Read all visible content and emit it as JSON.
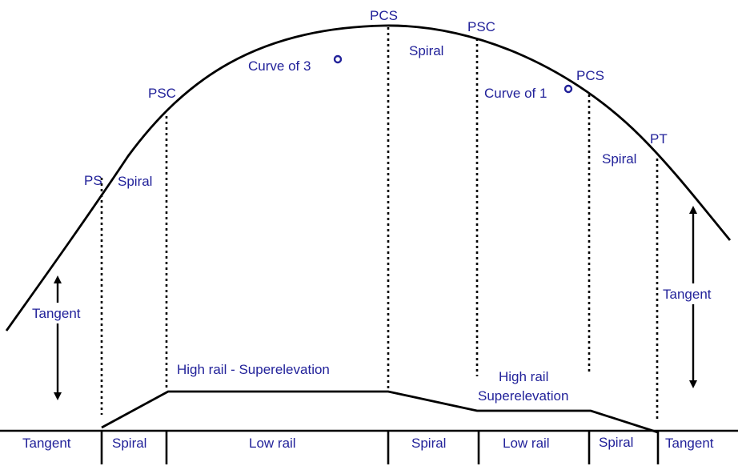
{
  "curve_labels": {
    "ps": "PS",
    "psc_left": "PSC",
    "pcs_top": "PCS",
    "psc_right": "PSC",
    "pcs_right": "PCS",
    "pt": "PT"
  },
  "segment_labels": {
    "spiral_left": "Spiral",
    "spiral_mid": "Spiral",
    "spiral_right": "Spiral",
    "curve_of_3": "Curve of 3",
    "curve_of_1": "Curve of 1"
  },
  "side_labels": {
    "tangent_left": "Tangent",
    "tangent_right": "Tangent"
  },
  "rail_labels": {
    "high_rail_left": "High rail - Superelevation",
    "high_rail_right_line1": "High rail",
    "high_rail_right_line2": "Superelevation"
  },
  "baseline_labels": {
    "tangent_left": "Tangent",
    "spiral_1": "Spiral",
    "low_rail_1": "Low rail",
    "spiral_2": "Spiral",
    "low_rail_2": "Low rail",
    "spiral_3": "Spiral",
    "tangent_right": "Tangent"
  },
  "colors": {
    "label": "#22229a",
    "line": "#000000",
    "background": "#ffffff"
  }
}
